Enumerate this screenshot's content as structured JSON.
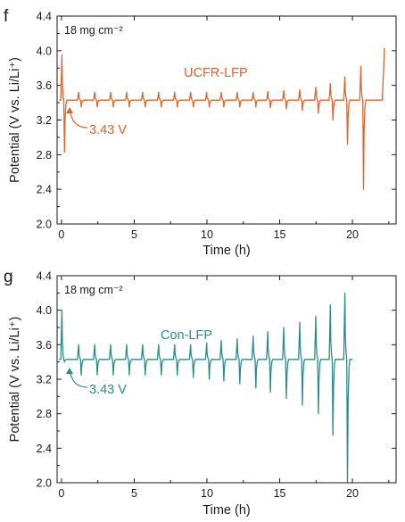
{
  "chart_data": [
    {
      "panel_label": "f",
      "type": "line",
      "loading_text": "18 mg cm⁻²",
      "series_label": "UCFR-LFP",
      "annotation": "3.43 V",
      "color": "#e0642e",
      "xlabel": "Time (h)",
      "ylabel": "Potential (V vs. Li/Li⁺)",
      "xlim": [
        -0.3,
        23
      ],
      "ylim": [
        2.0,
        4.4
      ],
      "xticks": [
        0,
        5,
        10,
        15,
        20
      ],
      "yticks": [
        2.0,
        2.4,
        2.8,
        3.2,
        3.6,
        4.0,
        4.4
      ],
      "xtick_labels": [
        "0",
        "5",
        "10",
        "15",
        "20"
      ],
      "ytick_labels": [
        "2.0",
        "2.4",
        "2.8",
        "3.2",
        "3.6",
        "4.0",
        "4.4"
      ],
      "plateau_voltage": 3.43,
      "pulse_times": [
        0.05,
        1.2,
        2.3,
        3.4,
        4.5,
        5.6,
        6.7,
        7.8,
        8.9,
        10.0,
        11.0,
        12.1,
        13.2,
        14.2,
        15.3,
        16.4,
        17.5,
        18.5,
        19.5,
        20.6
      ],
      "pulse_max_voltage": [
        3.95,
        3.52,
        3.52,
        3.52,
        3.52,
        3.52,
        3.52,
        3.52,
        3.52,
        3.52,
        3.52,
        3.52,
        3.52,
        3.53,
        3.54,
        3.55,
        3.58,
        3.62,
        3.7,
        3.82
      ],
      "pulse_min_voltage": [
        2.83,
        3.35,
        3.35,
        3.35,
        3.35,
        3.35,
        3.35,
        3.35,
        3.35,
        3.35,
        3.35,
        3.35,
        3.35,
        3.34,
        3.33,
        3.31,
        3.28,
        3.2,
        2.92,
        2.4
      ],
      "end_time": 22.2,
      "end_voltage": 4.03,
      "grid": false,
      "legend": "none"
    },
    {
      "panel_label": "g",
      "type": "line",
      "loading_text": "18 mg cm⁻²",
      "series_label": "Con-LFP",
      "annotation": "3.43 V",
      "color": "#2b8c8c",
      "xlabel": "Time (h)",
      "ylabel": "Potential (V vs. Li/Li⁺)",
      "xlim": [
        -0.3,
        23
      ],
      "ylim": [
        2.0,
        4.4
      ],
      "xticks": [
        0,
        5,
        10,
        15,
        20
      ],
      "yticks": [
        2.0,
        2.4,
        2.8,
        3.2,
        3.6,
        4.0,
        4.4
      ],
      "xtick_labels": [
        "0",
        "5",
        "10",
        "15",
        "20"
      ],
      "ytick_labels": [
        "2.0",
        "2.4",
        "2.8",
        "3.2",
        "3.6",
        "4.0",
        "4.4"
      ],
      "plateau_voltage": 3.43,
      "pulse_times": [
        0.05,
        1.2,
        2.3,
        3.4,
        4.5,
        5.6,
        6.7,
        7.8,
        8.9,
        10.0,
        11.0,
        12.1,
        13.2,
        14.2,
        15.3,
        16.4,
        17.5,
        18.5,
        19.5
      ],
      "pulse_max_voltage": [
        4.0,
        3.6,
        3.6,
        3.6,
        3.6,
        3.6,
        3.6,
        3.6,
        3.6,
        3.62,
        3.65,
        3.67,
        3.7,
        3.75,
        3.8,
        3.86,
        3.93,
        4.06,
        4.2
      ],
      "pulse_min_voltage": [
        3.4,
        3.25,
        3.25,
        3.25,
        3.25,
        3.25,
        3.25,
        3.25,
        3.22,
        3.2,
        3.18,
        3.15,
        3.1,
        3.05,
        2.98,
        2.9,
        2.8,
        2.55,
        2.0
      ],
      "end_time": 20.0,
      "end_voltage": 3.43,
      "grid": false,
      "legend": "none"
    }
  ]
}
